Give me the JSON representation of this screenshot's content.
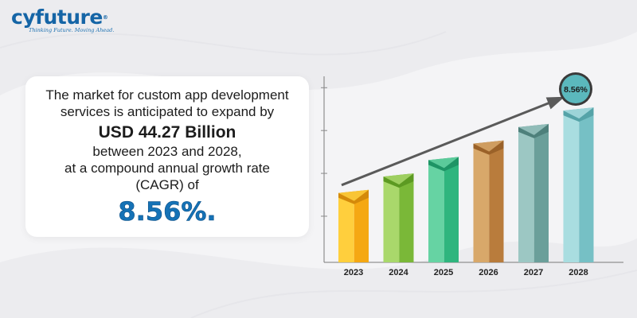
{
  "brand": {
    "name": "cyfuture",
    "registered": "®",
    "tagline": "Thinking Future. Moving Ahead."
  },
  "headline": {
    "line1": "The market for custom app development",
    "line2": "services is anticipated to expand by",
    "amount": "USD 44.27 Billion",
    "line3": "between 2023 and 2028,",
    "line4": "at a compound annual growth rate",
    "line5": "(CAGR) of",
    "cagr": "8.56%."
  },
  "chart_data": {
    "type": "bar",
    "title": "",
    "xlabel": "",
    "ylabel": "",
    "categories": [
      "2023",
      "2024",
      "2025",
      "2026",
      "2027",
      "2028"
    ],
    "values": [
      2.2,
      2.7,
      3.2,
      3.7,
      4.2,
      4.7
    ],
    "ylim": [
      0,
      5.5
    ],
    "grid": true,
    "trend_label": "8.56%",
    "colors": [
      {
        "light": "#ffcf3d",
        "main": "#f5a813",
        "dark": "#d48a0a"
      },
      {
        "light": "#a9d86b",
        "main": "#7ab838",
        "dark": "#5c9a22"
      },
      {
        "light": "#66d3a3",
        "main": "#2fb57e",
        "dark": "#1e9465"
      },
      {
        "light": "#d8a86a",
        "main": "#b97c3c",
        "dark": "#9a6128"
      },
      {
        "light": "#9cc7c3",
        "main": "#6b9f9a",
        "dark": "#4e807b"
      },
      {
        "light": "#a9dde0",
        "main": "#76c0c5",
        "dark": "#55a3a8"
      }
    ]
  }
}
